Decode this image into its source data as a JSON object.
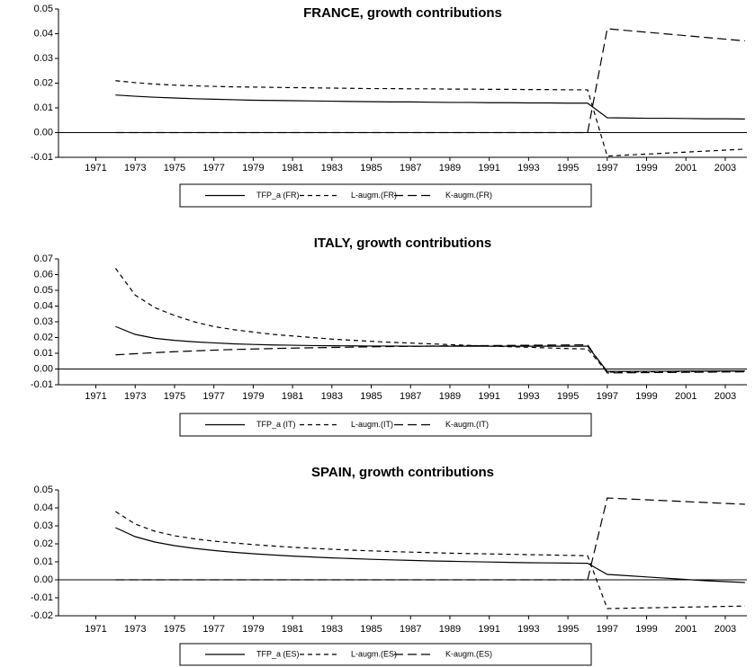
{
  "chart_data": [
    {
      "type": "line",
      "title": "FRANCE, growth contributions",
      "x": [
        1972,
        1973,
        1974,
        1975,
        1976,
        1977,
        1978,
        1979,
        1980,
        1981,
        1982,
        1983,
        1984,
        1985,
        1986,
        1987,
        1988,
        1989,
        1990,
        1991,
        1992,
        1993,
        1994,
        1995,
        1996,
        1997,
        1998,
        1999,
        2000,
        2001,
        2002,
        2003,
        2004
      ],
      "xlim": [
        1969.1,
        2004.1
      ],
      "xticks": [
        1971,
        1973,
        1975,
        1977,
        1979,
        1981,
        1983,
        1985,
        1987,
        1989,
        1991,
        1993,
        1995,
        1997,
        1999,
        2001,
        2003
      ],
      "ylim": [
        -0.01,
        0.05
      ],
      "yticks": [
        -0.01,
        {
          "value": 0,
          "label": "0.00"
        },
        0.01,
        0.02,
        0.03,
        0.04,
        0.05
      ],
      "series": [
        {
          "name": "TFP_a (FR)",
          "color": "#000000",
          "line_style": "solid",
          "values": [
            0.0152,
            0.0147,
            0.0143,
            0.014,
            0.0137,
            0.0135,
            0.0133,
            0.0131,
            0.013,
            0.0129,
            0.0128,
            0.0127,
            0.0126,
            0.0125,
            0.0124,
            0.0124,
            0.0123,
            0.0122,
            0.0122,
            0.0121,
            0.0121,
            0.012,
            0.012,
            0.0119,
            0.0119,
            0.006,
            0.0059,
            0.0058,
            0.0058,
            0.0057,
            0.0056,
            0.0056,
            0.0055
          ]
        },
        {
          "name": "L-augm.(FR)",
          "color": "#000000",
          "line_style": "dashed",
          "values": [
            0.021,
            0.0202,
            0.0196,
            0.0192,
            0.0189,
            0.0187,
            0.0185,
            0.0184,
            0.0183,
            0.0182,
            0.0181,
            0.018,
            0.0179,
            0.0178,
            0.0178,
            0.0177,
            0.0177,
            0.0176,
            0.0176,
            0.0175,
            0.0175,
            0.0174,
            0.0174,
            0.0173,
            0.0173,
            -0.0095,
            -0.0091,
            -0.0087,
            -0.0083,
            -0.0079,
            -0.0075,
            -0.0071,
            -0.0067
          ]
        },
        {
          "name": "K-augm.(FR)",
          "color": "#000000",
          "line_style": "long-dashed",
          "values": [
            0,
            0,
            0,
            0,
            0,
            0,
            0,
            0,
            0,
            0,
            0,
            0,
            0,
            0,
            0,
            0,
            0,
            0,
            0,
            0,
            0,
            0,
            0,
            0,
            0,
            0.042,
            0.0413,
            0.0406,
            0.0399,
            0.0392,
            0.0385,
            0.0378,
            0.0371
          ]
        }
      ]
    },
    {
      "type": "line",
      "title": "ITALY, growth contributions",
      "x": [
        1972,
        1973,
        1974,
        1975,
        1976,
        1977,
        1978,
        1979,
        1980,
        1981,
        1982,
        1983,
        1984,
        1985,
        1986,
        1987,
        1988,
        1989,
        1990,
        1991,
        1992,
        1993,
        1994,
        1995,
        1996,
        1997,
        1998,
        1999,
        2000,
        2001,
        2002,
        2003,
        2004
      ],
      "xlim": [
        1969.1,
        2004.1
      ],
      "xticks": [
        1971,
        1973,
        1975,
        1977,
        1979,
        1981,
        1983,
        1985,
        1987,
        1989,
        1991,
        1993,
        1995,
        1997,
        1999,
        2001,
        2003
      ],
      "ylim": [
        -0.01,
        0.07
      ],
      "yticks": [
        -0.01,
        {
          "value": 0,
          "label": "0.00"
        },
        0.01,
        0.02,
        0.03,
        0.04,
        0.05,
        0.06,
        0.07
      ],
      "series": [
        {
          "name": "TFP_a (IT)",
          "color": "#000000",
          "line_style": "solid",
          "values": [
            0.027,
            0.022,
            0.0195,
            0.0182,
            0.0173,
            0.0166,
            0.016,
            0.0156,
            0.0153,
            0.0151,
            0.0149,
            0.0148,
            0.0147,
            0.0146,
            0.0146,
            0.0145,
            0.0145,
            0.0145,
            0.0145,
            0.0145,
            0.0145,
            0.0145,
            0.0145,
            0.0145,
            0.0145,
            -0.0015,
            -0.0015,
            -0.0014,
            -0.0014,
            -0.0013,
            -0.0013,
            -0.0012,
            -0.0012
          ]
        },
        {
          "name": "L-augm.(IT)",
          "color": "#000000",
          "line_style": "dashed",
          "values": [
            0.064,
            0.047,
            0.039,
            0.034,
            0.03,
            0.027,
            0.025,
            0.0235,
            0.022,
            0.021,
            0.02,
            0.019,
            0.0183,
            0.0176,
            0.017,
            0.0165,
            0.016,
            0.0155,
            0.015,
            0.0146,
            0.0142,
            0.0138,
            0.0134,
            0.013,
            0.0127,
            -0.002,
            -0.0019,
            -0.0018,
            -0.0017,
            -0.0016,
            -0.0015,
            -0.0014,
            -0.0013
          ]
        },
        {
          "name": "K-augm.(IT)",
          "color": "#000000",
          "line_style": "long-dashed",
          "values": [
            0.009,
            0.0097,
            0.0104,
            0.011,
            0.0115,
            0.012,
            0.0124,
            0.0127,
            0.013,
            0.0133,
            0.0135,
            0.0137,
            0.0139,
            0.0141,
            0.0143,
            0.0144,
            0.0146,
            0.0147,
            0.0148,
            0.0149,
            0.015,
            0.0151,
            0.0152,
            0.0153,
            0.0154,
            -0.0025,
            -0.0024,
            -0.0023,
            -0.0022,
            -0.0021,
            -0.002,
            -0.0019,
            -0.0018
          ]
        }
      ]
    },
    {
      "type": "line",
      "title": "SPAIN, growth contributions",
      "x": [
        1972,
        1973,
        1974,
        1975,
        1976,
        1977,
        1978,
        1979,
        1980,
        1981,
        1982,
        1983,
        1984,
        1985,
        1986,
        1987,
        1988,
        1989,
        1990,
        1991,
        1992,
        1993,
        1994,
        1995,
        1996,
        1997,
        1998,
        1999,
        2000,
        2001,
        2002,
        2003,
        2004
      ],
      "xlim": [
        1969.1,
        2004.1
      ],
      "xticks": [
        1971,
        1973,
        1975,
        1977,
        1979,
        1981,
        1983,
        1985,
        1987,
        1989,
        1991,
        1993,
        1995,
        1997,
        1999,
        2001,
        2003
      ],
      "ylim": [
        -0.02,
        0.05
      ],
      "yticks": [
        -0.02,
        -0.01,
        {
          "value": 0,
          "label": "0.00"
        },
        0.01,
        0.02,
        0.03,
        0.04,
        0.05
      ],
      "series": [
        {
          "name": "TFP_a (ES)",
          "color": "#000000",
          "line_style": "solid",
          "values": [
            0.029,
            0.024,
            0.021,
            0.019,
            0.0175,
            0.0163,
            0.0153,
            0.0145,
            0.0138,
            0.0132,
            0.0127,
            0.0122,
            0.0118,
            0.0114,
            0.0111,
            0.0108,
            0.0105,
            0.0103,
            0.0101,
            0.0099,
            0.0097,
            0.0095,
            0.0094,
            0.0093,
            0.0092,
            0.003,
            0.0023,
            0.0016,
            0.0009,
            0.0002,
            -0.0005,
            -0.001,
            -0.0015
          ]
        },
        {
          "name": "L-augm.(ES)",
          "color": "#000000",
          "line_style": "dashed",
          "values": [
            0.038,
            0.031,
            0.027,
            0.0245,
            0.0228,
            0.0215,
            0.0205,
            0.0196,
            0.0188,
            0.0181,
            0.0175,
            0.017,
            0.0165,
            0.0161,
            0.0157,
            0.0154,
            0.0151,
            0.0148,
            0.0146,
            0.0144,
            0.0142,
            0.014,
            0.0138,
            0.0136,
            0.0134,
            -0.016,
            -0.0158,
            -0.0156,
            -0.0154,
            -0.0152,
            -0.015,
            -0.0148,
            -0.0146
          ]
        },
        {
          "name": "K-augm.(ES)",
          "color": "#000000",
          "line_style": "long-dashed",
          "values": [
            0,
            0,
            0,
            0,
            0,
            0,
            0,
            0,
            0,
            0,
            0,
            0,
            0,
            0,
            0,
            0,
            0,
            0,
            0,
            0,
            0,
            0,
            0,
            0,
            0,
            0.0455,
            0.045,
            0.0445,
            0.044,
            0.0435,
            0.043,
            0.0425,
            0.042
          ]
        }
      ]
    }
  ]
}
